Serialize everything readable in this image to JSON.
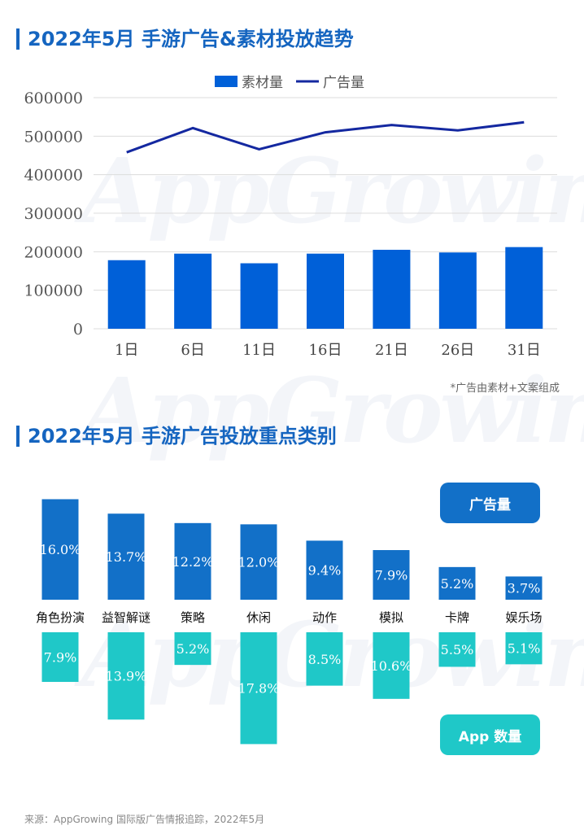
{
  "watermark": "AppGrowing",
  "colors": {
    "bar": "#0060d8",
    "line": "#1428a0",
    "ads": "#1270c8",
    "apps": "#1fc8c8",
    "title": "#1565c0"
  },
  "chart_data": [
    {
      "type": "bar+line",
      "title": "2022年5月 手游广告&素材投放趋势",
      "categories": [
        "1日",
        "6日",
        "11日",
        "16日",
        "21日",
        "26日",
        "31日"
      ],
      "series": [
        {
          "name": "素材量",
          "type": "bar",
          "values": [
            178000,
            195000,
            170000,
            195000,
            205000,
            198000,
            212000
          ]
        },
        {
          "name": "广告量",
          "type": "line",
          "values": [
            458000,
            521000,
            466000,
            510000,
            529000,
            515000,
            536000
          ]
        }
      ],
      "yticks": [
        0,
        100000,
        200000,
        300000,
        400000,
        500000,
        600000
      ],
      "ylim": [
        0,
        600000
      ],
      "grid": true,
      "legend": "top",
      "note": "*广告由素材+文案组成"
    },
    {
      "type": "bar",
      "title": "2022年5月 手游广告投放重点类别",
      "categories": [
        "角色扮演",
        "益智解谜",
        "策略",
        "休闲",
        "动作",
        "模拟",
        "卡牌",
        "娱乐场"
      ],
      "series": [
        {
          "name": "广告量",
          "values": [
            16.0,
            13.7,
            12.2,
            12.0,
            9.4,
            7.9,
            5.2,
            3.7
          ]
        },
        {
          "name": "App 数量",
          "values": [
            7.9,
            13.9,
            5.2,
            17.8,
            8.5,
            10.6,
            5.5,
            5.1
          ]
        }
      ],
      "unit": "%"
    }
  ],
  "source": "来源：AppGrowing 国际版广告情报追踪，2022年5月"
}
